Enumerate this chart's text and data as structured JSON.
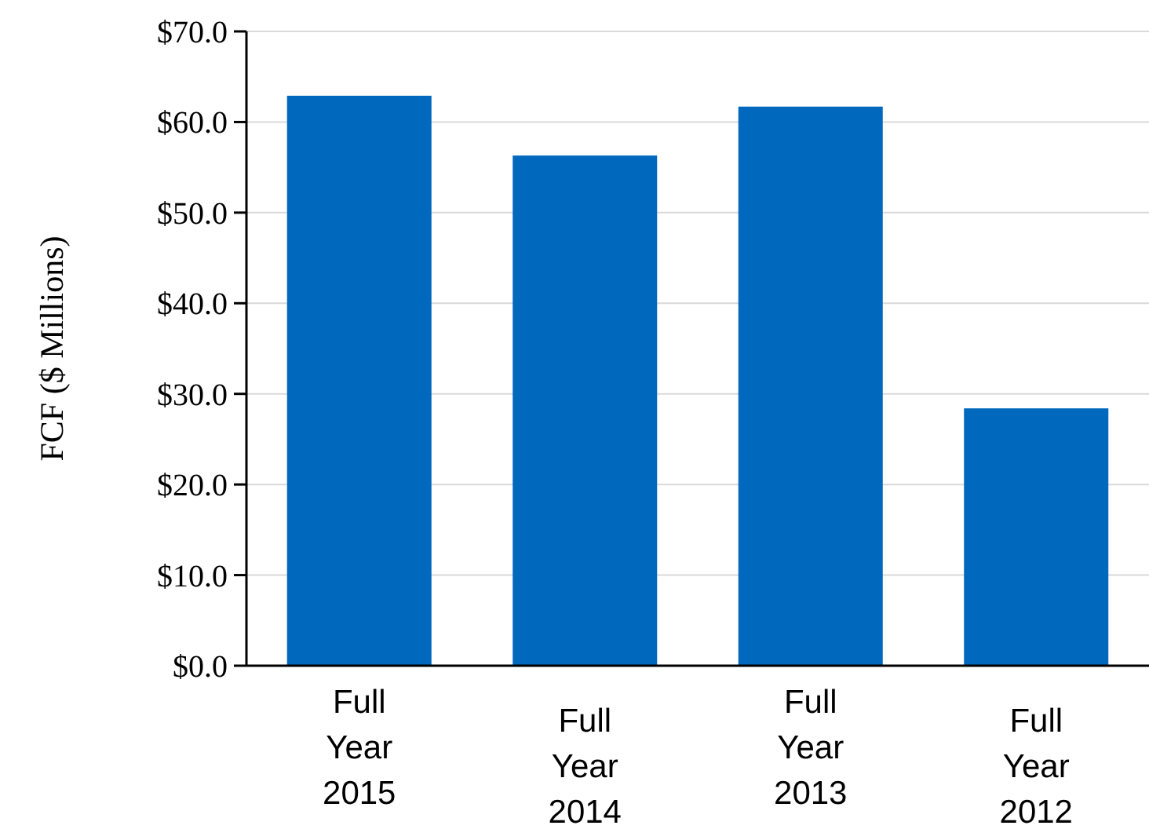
{
  "chart_data": {
    "type": "bar",
    "ylabel": "FCF ($ Millions)",
    "categories": [
      "Full Year 2015",
      "Full Year 2014",
      "Full Year 2013",
      "Full Year 2012"
    ],
    "values": [
      62.9,
      56.3,
      61.7,
      28.4
    ],
    "color": "#0068bd",
    "ylim": [
      0,
      70
    ],
    "yticks": [
      {
        "value": 0,
        "label": "$0.0"
      },
      {
        "value": 10,
        "label": "$10.0"
      },
      {
        "value": 20,
        "label": "$20.0"
      },
      {
        "value": 30,
        "label": "$30.0"
      },
      {
        "value": 40,
        "label": "$40.0"
      },
      {
        "value": 50,
        "label": "$50.0"
      },
      {
        "value": 60,
        "label": "$60.0"
      },
      {
        "value": 70,
        "label": "$70.0"
      }
    ],
    "grid": "y"
  }
}
